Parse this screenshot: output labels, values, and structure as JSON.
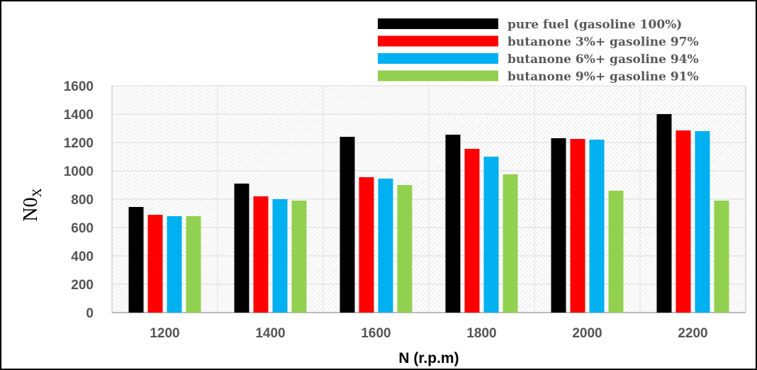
{
  "chart_data": {
    "type": "bar",
    "xlabel": "N (r.p.m)",
    "ylabel": "N0",
    "ylabel_subscript": "X",
    "categories": [
      "1200",
      "1400",
      "1600",
      "1800",
      "2000",
      "2200"
    ],
    "ylim": [
      0,
      1600
    ],
    "yticks": [
      "0",
      "200",
      "400",
      "600",
      "800",
      "1000",
      "1200",
      "1400",
      "1600"
    ],
    "grid": true,
    "legend_position": "top-right",
    "series": [
      {
        "name": "pure fuel (gasoline 100%)",
        "color": "#000000",
        "values": [
          745,
          910,
          1240,
          1255,
          1230,
          1400
        ]
      },
      {
        "name": "butanone 3%+ gasoline 97%",
        "color": "#ff0000",
        "values": [
          690,
          820,
          955,
          1155,
          1225,
          1285
        ]
      },
      {
        "name": "butanone 6%+ gasoline 94%",
        "color": "#00b0f0",
        "values": [
          680,
          800,
          945,
          1100,
          1220,
          1280
        ]
      },
      {
        "name": "butanone 9%+ gasoline 91%",
        "color": "#92d050",
        "values": [
          680,
          790,
          900,
          975,
          860,
          790
        ]
      }
    ]
  }
}
